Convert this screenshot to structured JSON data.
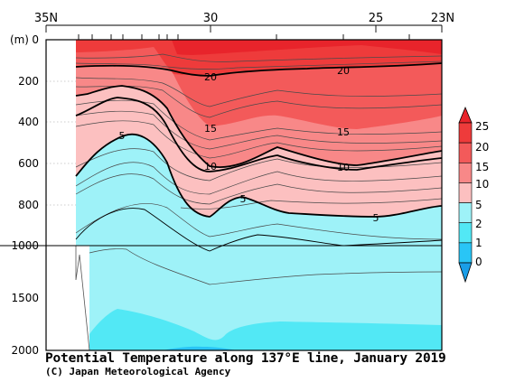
{
  "title": "Potential Temperature along 137°E line, January 2019",
  "credit": "(C) Japan Meteorological Agency",
  "chart_data": {
    "type": "contour",
    "title": "Potential Temperature along 137°E line, January 2019",
    "x_axis": {
      "range": [
        35,
        23
      ],
      "tick_labels": [
        {
          "value": 35,
          "label": "35N"
        },
        {
          "value": 30,
          "label": "30"
        },
        {
          "value": 25,
          "label": "25"
        },
        {
          "value": 23,
          "label": "23N"
        }
      ],
      "station_ticks": [
        34.1,
        33.9,
        33.3,
        33.0,
        32.5,
        32.2,
        32.0,
        31.7,
        31.0,
        30.0,
        28.0,
        26.0,
        24.0
      ]
    },
    "y_axis": {
      "label": "(m)",
      "range": [
        0,
        2000
      ],
      "scale_break_at": 1000,
      "tick_labels_upper": [
        "0",
        "200",
        "400",
        "600",
        "800",
        "1000"
      ],
      "tick_labels_lower": [
        "1500",
        "2000"
      ]
    },
    "colorbar": {
      "labels": [
        "25",
        "20",
        "15",
        "10",
        "5",
        "2",
        "1",
        "0"
      ],
      "bands": [
        {
          "range": "above 25",
          "color": "#e8242b"
        },
        {
          "range": "20-25",
          "color": "#ee3b3b"
        },
        {
          "range": "15-20",
          "color": "#f35a5a"
        },
        {
          "range": "10-15",
          "color": "#f88888"
        },
        {
          "range": "5-10",
          "color": "#fcc0c0"
        },
        {
          "range": "2-5",
          "color": "#9ef2f8"
        },
        {
          "range": "1-2",
          "color": "#52e8f5"
        },
        {
          "range": "0-1",
          "color": "#29c5f6"
        },
        {
          "range": "below 0",
          "color": "#1a9ee8"
        }
      ]
    },
    "isotherms": [
      {
        "level": 20,
        "points": [
          [
            34.0,
            65
          ],
          [
            33.0,
            60
          ],
          [
            31.5,
            80
          ],
          [
            30.5,
            90
          ],
          [
            29.0,
            85
          ],
          [
            27.0,
            80
          ],
          [
            25.0,
            75
          ],
          [
            23.0,
            65
          ]
        ]
      },
      {
        "level": 15,
        "points": [
          [
            34.0,
            150
          ],
          [
            33.2,
            145
          ],
          [
            32.6,
            125
          ],
          [
            32.0,
            165
          ],
          [
            31.5,
            300
          ],
          [
            30.5,
            390
          ],
          [
            29.0,
            340
          ],
          [
            27.8,
            310
          ],
          [
            26.0,
            380
          ],
          [
            25.0,
            360
          ],
          [
            23.0,
            300
          ]
        ]
      },
      {
        "level": 10,
        "points": [
          [
            34.0,
            290
          ],
          [
            33.2,
            255
          ],
          [
            32.6,
            230
          ],
          [
            32.0,
            300
          ],
          [
            31.5,
            470
          ],
          [
            30.5,
            590
          ],
          [
            29.0,
            520
          ],
          [
            27.8,
            480
          ],
          [
            26.0,
            590
          ],
          [
            25.0,
            560
          ],
          [
            23.0,
            470
          ]
        ]
      },
      {
        "level": 5,
        "points": [
          [
            34.0,
            600
          ],
          [
            33.5,
            530
          ],
          [
            32.7,
            460
          ],
          [
            32.0,
            560
          ],
          [
            31.5,
            730
          ],
          [
            30.5,
            860
          ],
          [
            29.5,
            800
          ],
          [
            28.0,
            730
          ],
          [
            26.5,
            840
          ],
          [
            25.0,
            850
          ],
          [
            23.0,
            820
          ]
        ]
      },
      {
        "level": 2,
        "points": [
          [
            34.0,
            1300
          ],
          [
            33.5,
            1180
          ],
          [
            32.5,
            1100
          ],
          [
            31.5,
            1250
          ],
          [
            30.0,
            1470
          ],
          [
            28.5,
            1360
          ],
          [
            27.0,
            1400
          ],
          [
            23.0,
            1380
          ]
        ]
      },
      {
        "level": 1,
        "points": [
          [
            33.5,
            1880
          ],
          [
            32.5,
            1640
          ],
          [
            31.0,
            1800
          ],
          [
            30.0,
            1980
          ],
          [
            28.0,
            1800
          ],
          [
            25.0,
            1760
          ],
          [
            23.0,
            1780
          ]
        ]
      }
    ],
    "contour_labels": [
      {
        "text": "20",
        "lat": 30.0,
        "depth": 85
      },
      {
        "text": "20",
        "lat": 26.0,
        "depth": 70
      },
      {
        "text": "15",
        "lat": 30.0,
        "depth": 385
      },
      {
        "text": "15",
        "lat": 26.0,
        "depth": 415
      },
      {
        "text": "10",
        "lat": 30.0,
        "depth": 590
      },
      {
        "text": "10",
        "lat": 26.0,
        "depth": 605
      },
      {
        "text": "5",
        "lat": 32.8,
        "depth": 465
      },
      {
        "text": "5",
        "lat": 29.0,
        "depth": 800
      },
      {
        "text": "5",
        "lat": 25.0,
        "depth": 855
      }
    ]
  }
}
